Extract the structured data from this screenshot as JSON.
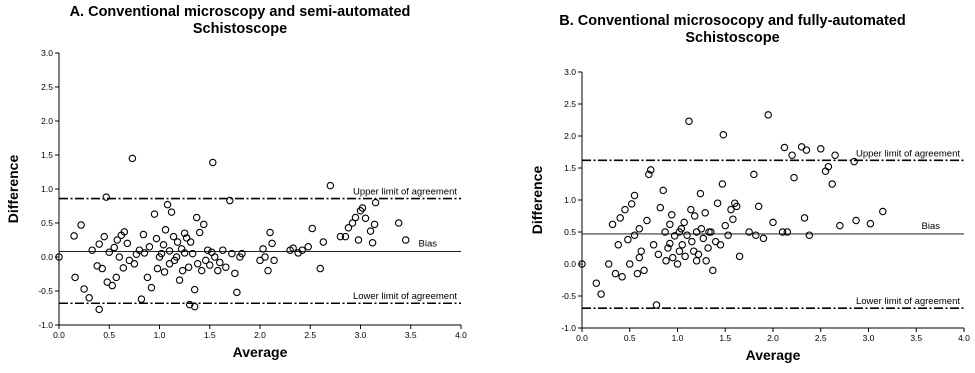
{
  "chart_data": [
    {
      "type": "scatter",
      "panel": "A",
      "title": "A. Conventional microscopy and semi-automated",
      "title_line2": "Schistoscope",
      "xlabel": "Average",
      "ylabel": "Difference",
      "xlim": [
        0,
        4
      ],
      "ylim": [
        -1,
        3
      ],
      "xticks": [
        "0.0",
        "0.5",
        "1.0",
        "1.5",
        "2.0",
        "2.5",
        "3.0",
        "3.5",
        "4.0"
      ],
      "yticks": [
        "-1.0",
        "-0.5",
        "0.0",
        "0.5",
        "1.0",
        "1.5",
        "2.0",
        "2.5",
        "3.0"
      ],
      "bias": 0.08,
      "upper_loa": 0.86,
      "lower_loa": -0.68,
      "bias_label": "Bias",
      "upper_label": "Upper limit of agreement",
      "lower_label": "Lower limit of agreement",
      "grid": false,
      "points": [
        [
          0.0,
          0.0
        ],
        [
          0.15,
          0.31
        ],
        [
          0.16,
          -0.3
        ],
        [
          0.22,
          0.47
        ],
        [
          0.25,
          -0.47
        ],
        [
          0.3,
          -0.6
        ],
        [
          0.33,
          0.1
        ],
        [
          0.38,
          -0.13
        ],
        [
          0.4,
          0.19
        ],
        [
          0.4,
          -0.77
        ],
        [
          0.43,
          -0.17
        ],
        [
          0.45,
          0.3
        ],
        [
          0.47,
          0.88
        ],
        [
          0.48,
          -0.37
        ],
        [
          0.5,
          0.07
        ],
        [
          0.53,
          -0.42
        ],
        [
          0.55,
          0.14
        ],
        [
          0.57,
          -0.3
        ],
        [
          0.58,
          0.25
        ],
        [
          0.6,
          0.0
        ],
        [
          0.62,
          0.32
        ],
        [
          0.64,
          -0.16
        ],
        [
          0.65,
          0.37
        ],
        [
          0.68,
          0.2
        ],
        [
          0.7,
          -0.05
        ],
        [
          0.73,
          1.45
        ],
        [
          0.75,
          -0.1
        ],
        [
          0.77,
          0.04
        ],
        [
          0.8,
          0.1
        ],
        [
          0.82,
          -0.62
        ],
        [
          0.84,
          0.33
        ],
        [
          0.85,
          0.06
        ],
        [
          0.88,
          -0.3
        ],
        [
          0.9,
          0.15
        ],
        [
          0.92,
          -0.45
        ],
        [
          0.95,
          0.63
        ],
        [
          0.97,
          0.27
        ],
        [
          0.98,
          -0.17
        ],
        [
          1.0,
          0.0
        ],
        [
          1.02,
          0.05
        ],
        [
          1.04,
          0.18
        ],
        [
          1.05,
          -0.22
        ],
        [
          1.06,
          0.4
        ],
        [
          1.08,
          0.77
        ],
        [
          1.1,
          0.09
        ],
        [
          1.1,
          -0.1
        ],
        [
          1.12,
          0.66
        ],
        [
          1.14,
          0.3
        ],
        [
          1.15,
          -0.05
        ],
        [
          1.17,
          0.0
        ],
        [
          1.18,
          0.22
        ],
        [
          1.2,
          -0.34
        ],
        [
          1.22,
          0.12
        ],
        [
          1.23,
          -0.2
        ],
        [
          1.25,
          0.35
        ],
        [
          1.25,
          0.06
        ],
        [
          1.27,
          0.28
        ],
        [
          1.29,
          -0.15
        ],
        [
          1.3,
          -0.7
        ],
        [
          1.31,
          0.22
        ],
        [
          1.33,
          0.05
        ],
        [
          1.35,
          -0.48
        ],
        [
          1.35,
          -0.73
        ],
        [
          1.37,
          0.58
        ],
        [
          1.38,
          -0.1
        ],
        [
          1.4,
          0.36
        ],
        [
          1.42,
          -0.2
        ],
        [
          1.44,
          0.48
        ],
        [
          1.46,
          -0.05
        ],
        [
          1.48,
          0.1
        ],
        [
          1.5,
          -0.12
        ],
        [
          1.52,
          0.07
        ],
        [
          1.53,
          1.39
        ],
        [
          1.55,
          0.0
        ],
        [
          1.58,
          -0.2
        ],
        [
          1.6,
          -0.08
        ],
        [
          1.63,
          0.1
        ],
        [
          1.66,
          -0.15
        ],
        [
          1.7,
          0.83
        ],
        [
          1.72,
          0.05
        ],
        [
          1.75,
          -0.24
        ],
        [
          1.77,
          -0.52
        ],
        [
          1.8,
          0.0
        ],
        [
          1.82,
          0.05
        ],
        [
          2.0,
          -0.05
        ],
        [
          2.03,
          0.12
        ],
        [
          2.05,
          0.0
        ],
        [
          2.08,
          -0.2
        ],
        [
          2.1,
          0.36
        ],
        [
          2.12,
          0.2
        ],
        [
          2.14,
          -0.05
        ],
        [
          2.3,
          0.1
        ],
        [
          2.33,
          0.13
        ],
        [
          2.38,
          0.06
        ],
        [
          2.42,
          0.1
        ],
        [
          2.48,
          0.15
        ],
        [
          2.52,
          0.42
        ],
        [
          2.6,
          -0.17
        ],
        [
          2.63,
          0.22
        ],
        [
          2.7,
          1.05
        ],
        [
          2.8,
          0.3
        ],
        [
          2.85,
          0.3
        ],
        [
          2.88,
          0.43
        ],
        [
          2.92,
          0.5
        ],
        [
          2.95,
          0.58
        ],
        [
          2.98,
          0.25
        ],
        [
          3.0,
          0.68
        ],
        [
          3.02,
          0.72
        ],
        [
          3.05,
          0.57
        ],
        [
          3.1,
          0.38
        ],
        [
          3.12,
          0.21
        ],
        [
          3.14,
          0.48
        ],
        [
          3.15,
          0.8
        ],
        [
          3.38,
          0.5
        ],
        [
          3.45,
          0.25
        ]
      ]
    },
    {
      "type": "scatter",
      "panel": "B",
      "title": "B. Conventional microsocopy and fully-automated",
      "title_line2": "Schistoscope",
      "xlabel": "Average",
      "ylabel": "Difference",
      "xlim": [
        0,
        4
      ],
      "ylim": [
        -1,
        3
      ],
      "xticks": [
        "0.0",
        "0.5",
        "1.0",
        "1.5",
        "2.0",
        "2.5",
        "3.0",
        "3.5",
        "4.0"
      ],
      "yticks": [
        "-1.0",
        "-0.5",
        "0.0",
        "0.5",
        "1.0",
        "1.5",
        "2.0",
        "2.5",
        "3.0"
      ],
      "bias": 0.47,
      "upper_loa": 1.62,
      "lower_loa": -0.69,
      "bias_label": "Bias",
      "upper_label": "Upper limit of agreement",
      "lower_label": "Lower limit of agreement",
      "grid": false,
      "points": [
        [
          0.0,
          0.0
        ],
        [
          0.15,
          -0.3
        ],
        [
          0.2,
          -0.47
        ],
        [
          0.28,
          0.0
        ],
        [
          0.32,
          0.62
        ],
        [
          0.35,
          -0.15
        ],
        [
          0.38,
          0.3
        ],
        [
          0.4,
          0.72
        ],
        [
          0.42,
          -0.2
        ],
        [
          0.45,
          0.85
        ],
        [
          0.48,
          0.38
        ],
        [
          0.5,
          0.0
        ],
        [
          0.52,
          0.94
        ],
        [
          0.55,
          1.07
        ],
        [
          0.58,
          -0.15
        ],
        [
          0.6,
          0.55
        ],
        [
          0.62,
          0.2
        ],
        [
          0.65,
          -0.1
        ],
        [
          0.68,
          0.68
        ],
        [
          0.7,
          1.4
        ],
        [
          0.72,
          1.47
        ],
        [
          0.75,
          0.3
        ],
        [
          0.78,
          -0.64
        ],
        [
          0.8,
          0.15
        ],
        [
          0.82,
          0.88
        ],
        [
          0.85,
          1.15
        ],
        [
          0.87,
          0.5
        ],
        [
          0.88,
          0.05
        ],
        [
          0.9,
          0.25
        ],
        [
          0.92,
          0.62
        ],
        [
          0.94,
          0.77
        ],
        [
          0.95,
          0.1
        ],
        [
          0.97,
          0.44
        ],
        [
          1.0,
          0.0
        ],
        [
          1.02,
          0.2
        ],
        [
          1.04,
          0.55
        ],
        [
          1.05,
          0.3
        ],
        [
          1.07,
          0.65
        ],
        [
          1.08,
          0.12
        ],
        [
          1.1,
          0.45
        ],
        [
          1.12,
          2.23
        ],
        [
          1.14,
          0.85
        ],
        [
          1.15,
          0.35
        ],
        [
          1.17,
          0.2
        ],
        [
          1.18,
          0.75
        ],
        [
          1.2,
          0.5
        ],
        [
          1.22,
          0.15
        ],
        [
          1.24,
          1.1
        ],
        [
          1.25,
          0.55
        ],
        [
          1.27,
          0.4
        ],
        [
          1.29,
          0.8
        ],
        [
          1.3,
          0.05
        ],
        [
          1.32,
          0.25
        ],
        [
          1.35,
          0.5
        ],
        [
          1.37,
          -0.1
        ],
        [
          1.4,
          0.35
        ],
        [
          1.42,
          0.95
        ],
        [
          1.45,
          0.3
        ],
        [
          1.47,
          1.25
        ],
        [
          1.48,
          2.02
        ],
        [
          1.5,
          0.6
        ],
        [
          1.53,
          0.45
        ],
        [
          1.56,
          0.85
        ],
        [
          1.58,
          0.7
        ],
        [
          1.6,
          0.95
        ],
        [
          1.62,
          0.9
        ],
        [
          1.65,
          0.12
        ],
        [
          1.75,
          0.5
        ],
        [
          1.8,
          1.4
        ],
        [
          1.82,
          0.45
        ],
        [
          1.85,
          0.9
        ],
        [
          1.9,
          0.4
        ],
        [
          1.95,
          2.33
        ],
        [
          2.0,
          0.65
        ],
        [
          2.1,
          0.5
        ],
        [
          2.12,
          1.82
        ],
        [
          2.15,
          0.5
        ],
        [
          2.2,
          1.7
        ],
        [
          2.22,
          1.35
        ],
        [
          2.3,
          1.83
        ],
        [
          2.33,
          0.72
        ],
        [
          2.35,
          1.78
        ],
        [
          2.38,
          0.45
        ],
        [
          2.5,
          1.8
        ],
        [
          2.55,
          1.45
        ],
        [
          2.58,
          1.52
        ],
        [
          2.62,
          1.25
        ],
        [
          2.65,
          1.7
        ],
        [
          2.7,
          0.6
        ],
        [
          2.85,
          1.6
        ],
        [
          2.87,
          0.68
        ],
        [
          3.02,
          0.63
        ],
        [
          3.15,
          0.82
        ],
        [
          0.55,
          0.45
        ],
        [
          0.6,
          0.1
        ],
        [
          1.33,
          0.5
        ],
        [
          1.02,
          0.5
        ],
        [
          0.92,
          0.32
        ],
        [
          1.2,
          0.05
        ]
      ]
    }
  ]
}
